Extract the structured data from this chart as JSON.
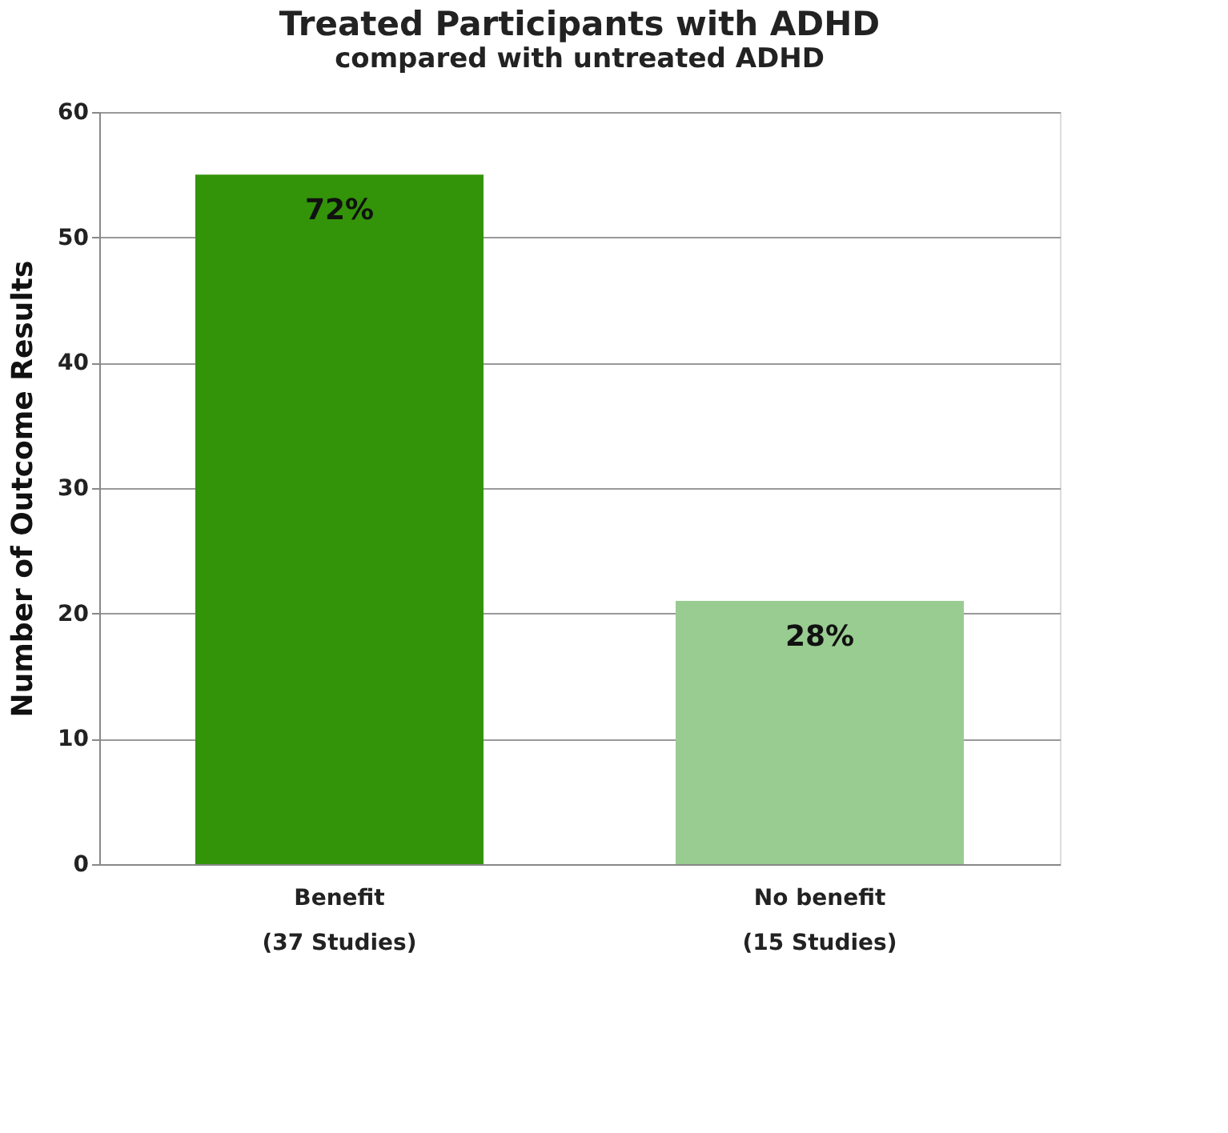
{
  "chart_data": {
    "type": "bar",
    "title": "Treated Participants with ADHD",
    "subtitle": "compared with untreated ADHD",
    "ylabel": "Number of Outcome Results",
    "categories": [
      "Benefit\n\n(37 Studies)",
      "No benefit\n\n(15 Studies)"
    ],
    "values": [
      55,
      21
    ],
    "colors": [
      "#339409",
      "#99cc91"
    ],
    "annotations": [
      {
        "text": "72%",
        "x": "Benefit\n\n(37 Studies)",
        "y": 55
      },
      {
        "text": "28%",
        "x": "No benefit\n\n(15 Studies)",
        "y": 21
      }
    ],
    "ylim": [
      0,
      60
    ],
    "yticks": [
      0,
      10,
      20,
      30,
      40,
      50,
      60
    ],
    "grid": "y",
    "legend": false
  }
}
